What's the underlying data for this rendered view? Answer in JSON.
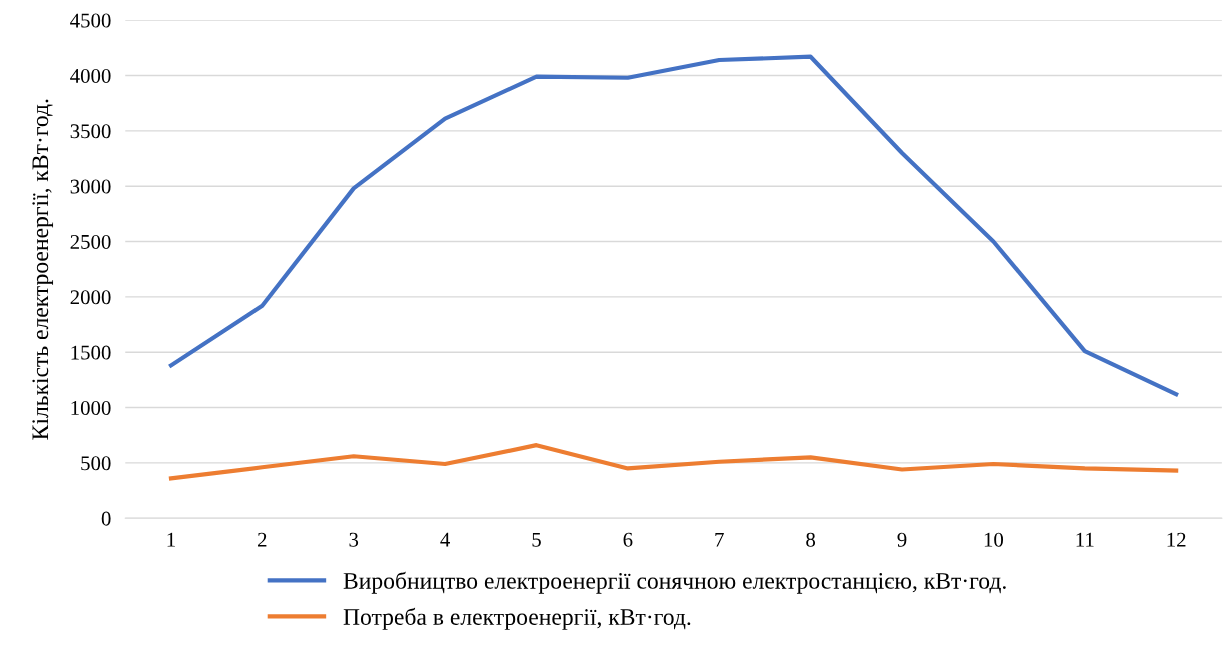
{
  "chart_data": {
    "type": "line",
    "ylabel": "Кількість електроенергії, кВт·год.",
    "categories": [
      "1",
      "2",
      "3",
      "4",
      "5",
      "6",
      "7",
      "8",
      "9",
      "10",
      "11",
      "12"
    ],
    "series": [
      {
        "name": "Виробництво електроенергії сонячною електростанцією, кВт·год.",
        "color": "#4472c4",
        "values": [
          1380,
          1920,
          2980,
          3610,
          3990,
          3980,
          4140,
          4170,
          3300,
          2500,
          1510,
          1120
        ]
      },
      {
        "name": "Потреба в електроенергії, кВт·год.",
        "color": "#ed7d31",
        "values": [
          360,
          460,
          560,
          490,
          660,
          450,
          510,
          550,
          440,
          490,
          450,
          430
        ]
      }
    ],
    "ylim": [
      0,
      4500
    ],
    "yticks": [
      0,
      500,
      1000,
      1500,
      2000,
      2500,
      3000,
      3500,
      4000,
      4500
    ],
    "grid": "y",
    "legend": "bottom",
    "marker": "none",
    "line_style": "solid"
  }
}
